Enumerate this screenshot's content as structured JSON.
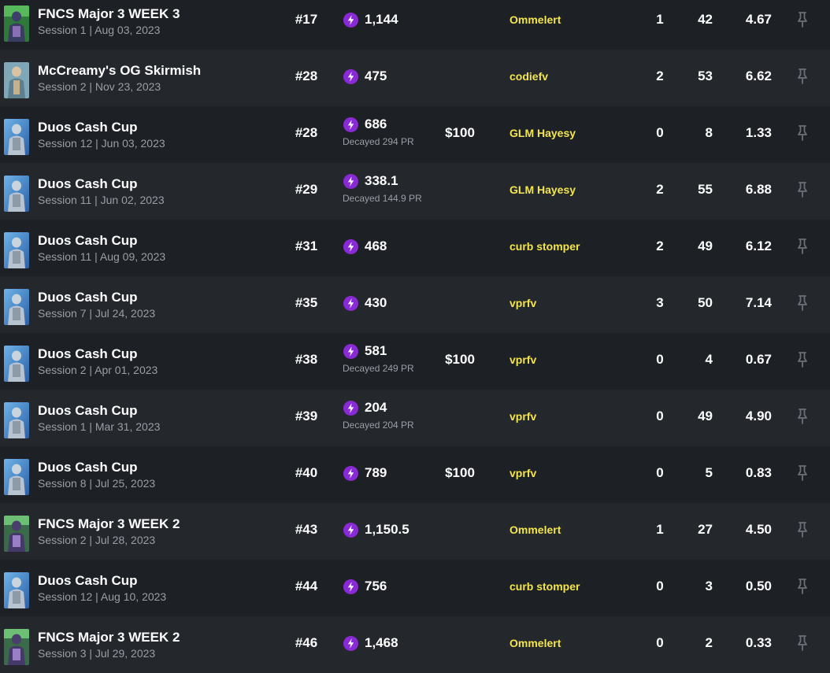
{
  "colors": {
    "row_odd": "#1d2024",
    "row_even": "#24272c",
    "team_name": "#f3e54e",
    "power_icon": "#8a2ad6",
    "muted_text": "#9a9ea6"
  },
  "icons": {
    "power_rank": "lightning-bolt-icon",
    "pin": "pin-icon"
  },
  "rows": [
    {
      "title": "FNCS Major 3 WEEK 3",
      "session": "Session 1 | Aug 03, 2023",
      "rank": "#17",
      "pr": "1,144",
      "decay": "",
      "earnings": "",
      "team": "Ommelert",
      "wins": "1",
      "elims": "42",
      "avg": "4.67",
      "thumb": "fncs"
    },
    {
      "title": "McCreamy's OG Skirmish",
      "session": "Session 2 | Nov 23, 2023",
      "rank": "#28",
      "pr": "475",
      "decay": "",
      "earnings": "",
      "team": "codiefv",
      "wins": "2",
      "elims": "53",
      "avg": "6.62",
      "thumb": "skirmish"
    },
    {
      "title": "Duos Cash Cup",
      "session": "Session 12 | Jun 03, 2023",
      "rank": "#28",
      "pr": "686",
      "decay": "Decayed 294 PR",
      "earnings": "$100",
      "team": "GLM Hayesy",
      "wins": "0",
      "elims": "8",
      "avg": "1.33",
      "thumb": "duos"
    },
    {
      "title": "Duos Cash Cup",
      "session": "Session 11 | Jun 02, 2023",
      "rank": "#29",
      "pr": "338.1",
      "decay": "Decayed 144.9 PR",
      "earnings": "",
      "team": "GLM Hayesy",
      "wins": "2",
      "elims": "55",
      "avg": "6.88",
      "thumb": "duos"
    },
    {
      "title": "Duos Cash Cup",
      "session": "Session 11 | Aug 09, 2023",
      "rank": "#31",
      "pr": "468",
      "decay": "",
      "earnings": "",
      "team": "curb stomper",
      "wins": "2",
      "elims": "49",
      "avg": "6.12",
      "thumb": "duos"
    },
    {
      "title": "Duos Cash Cup",
      "session": "Session 7 | Jul 24, 2023",
      "rank": "#35",
      "pr": "430",
      "decay": "",
      "earnings": "",
      "team": "vprfv",
      "wins": "3",
      "elims": "50",
      "avg": "7.14",
      "thumb": "duos"
    },
    {
      "title": "Duos Cash Cup",
      "session": "Session 2 | Apr 01, 2023",
      "rank": "#38",
      "pr": "581",
      "decay": "Decayed 249 PR",
      "earnings": "$100",
      "team": "vprfv",
      "wins": "0",
      "elims": "4",
      "avg": "0.67",
      "thumb": "duos"
    },
    {
      "title": "Duos Cash Cup",
      "session": "Session 1 | Mar 31, 2023",
      "rank": "#39",
      "pr": "204",
      "decay": "Decayed 204 PR",
      "earnings": "",
      "team": "vprfv",
      "wins": "0",
      "elims": "49",
      "avg": "4.90",
      "thumb": "duos"
    },
    {
      "title": "Duos Cash Cup",
      "session": "Session 8 | Jul 25, 2023",
      "rank": "#40",
      "pr": "789",
      "decay": "",
      "earnings": "$100",
      "team": "vprfv",
      "wins": "0",
      "elims": "5",
      "avg": "0.83",
      "thumb": "duos"
    },
    {
      "title": "FNCS Major 3 WEEK 2",
      "session": "Session 2 | Jul 28, 2023",
      "rank": "#43",
      "pr": "1,150.5",
      "decay": "",
      "earnings": "",
      "team": "Ommelert",
      "wins": "1",
      "elims": "27",
      "avg": "4.50",
      "thumb": "fncs2"
    },
    {
      "title": "Duos Cash Cup",
      "session": "Session 12 | Aug 10, 2023",
      "rank": "#44",
      "pr": "756",
      "decay": "",
      "earnings": "",
      "team": "curb stomper",
      "wins": "0",
      "elims": "3",
      "avg": "0.50",
      "thumb": "duos"
    },
    {
      "title": "FNCS Major 3 WEEK 2",
      "session": "Session 3 | Jul 29, 2023",
      "rank": "#46",
      "pr": "1,468",
      "decay": "",
      "earnings": "",
      "team": "Ommelert",
      "wins": "0",
      "elims": "2",
      "avg": "0.33",
      "thumb": "fncs2"
    }
  ]
}
